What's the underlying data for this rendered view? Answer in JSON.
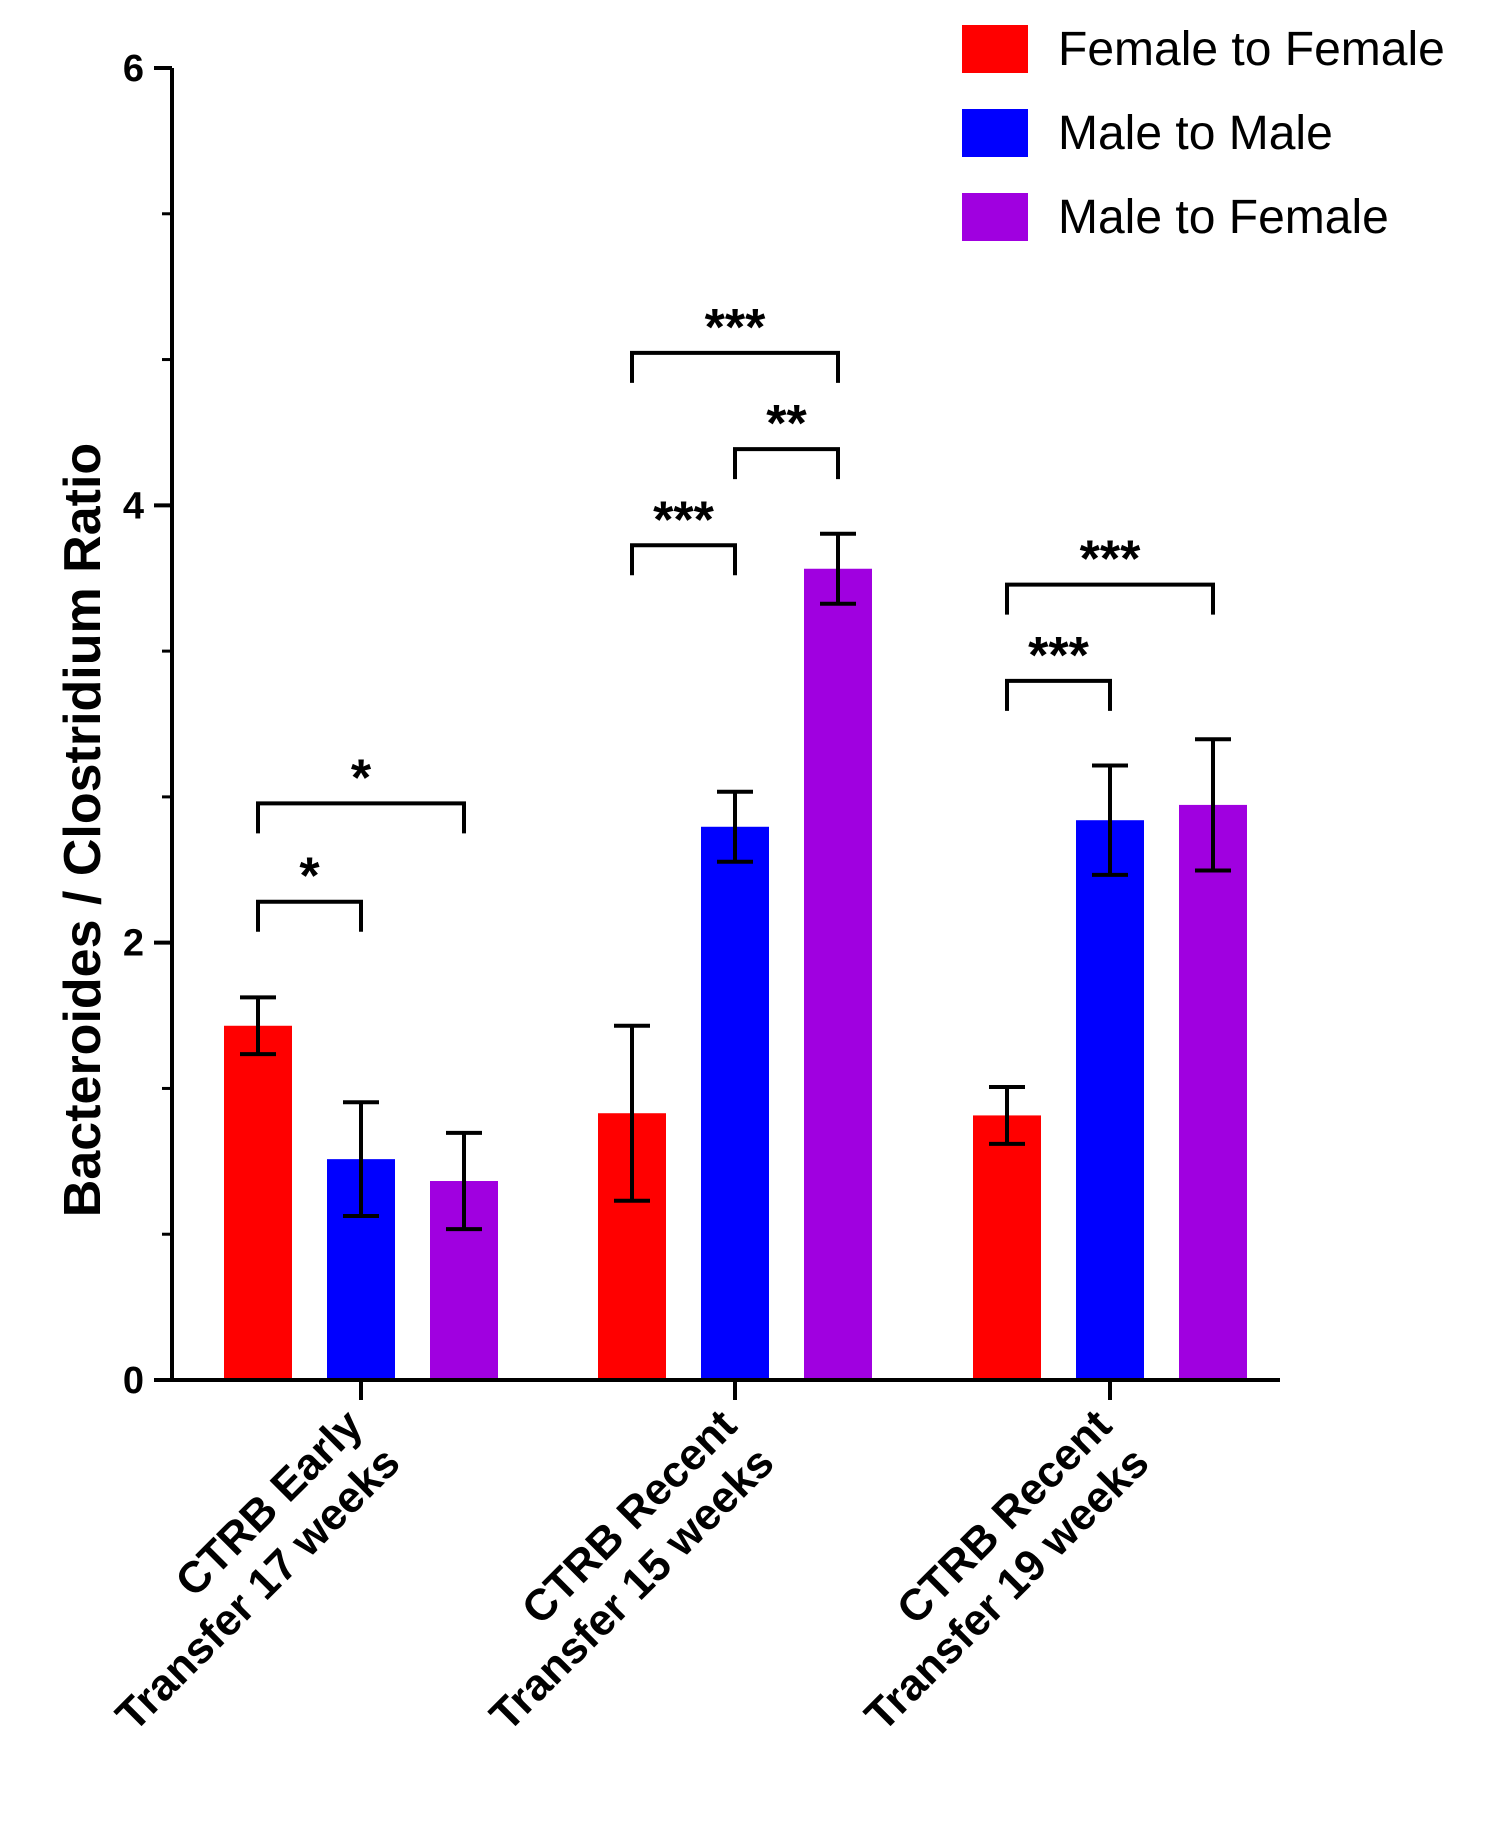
{
  "chart_data": {
    "type": "bar",
    "ylabel": "Bacteroides / Clostridium Ratio",
    "xlabel": "",
    "ylim": [
      0,
      6
    ],
    "yticks": [
      0,
      2,
      4,
      6
    ],
    "grid": false,
    "legend_position": "top-right",
    "categories": [
      {
        "line1": "CTRB Early",
        "line2": "Transfer 17 weeks"
      },
      {
        "line1": "CTRB Recent",
        "line2": "Transfer 15 weeks"
      },
      {
        "line1": "CTRB Recent",
        "line2": "Transfer 19 weeks"
      }
    ],
    "series": [
      {
        "name": "Female to Female",
        "color": "#ff0000",
        "values": [
          1.62,
          1.22,
          1.21
        ],
        "errors": [
          0.13,
          0.4,
          0.13
        ]
      },
      {
        "name": "Male to Male",
        "color": "#0000ff",
        "values": [
          1.01,
          2.53,
          2.56
        ],
        "errors": [
          0.26,
          0.16,
          0.25
        ]
      },
      {
        "name": "Male to Female",
        "color": "#a000e0",
        "values": [
          0.91,
          3.71,
          2.63
        ],
        "errors": [
          0.22,
          0.16,
          0.3
        ]
      }
    ],
    "significance": [
      {
        "category": 0,
        "from": 0,
        "to": 1,
        "base": 2.05,
        "label": "*"
      },
      {
        "category": 0,
        "from": 0,
        "to": 2,
        "base": 2.5,
        "label": "*"
      },
      {
        "category": 1,
        "from": 0,
        "to": 1,
        "base": 3.68,
        "label": "***"
      },
      {
        "category": 1,
        "from": 1,
        "to": 2,
        "base": 4.12,
        "label": "**"
      },
      {
        "category": 1,
        "from": 0,
        "to": 2,
        "base": 4.56,
        "label": "***"
      },
      {
        "category": 2,
        "from": 0,
        "to": 1,
        "base": 3.06,
        "label": "***"
      },
      {
        "category": 2,
        "from": 0,
        "to": 2,
        "base": 3.5,
        "label": "***"
      }
    ]
  }
}
